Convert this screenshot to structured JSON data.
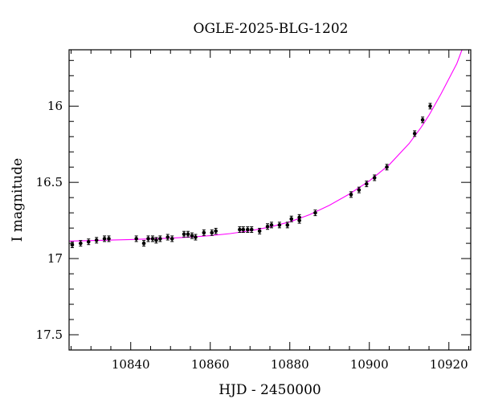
{
  "chart_data": {
    "type": "scatter",
    "title": "OGLE-2025-BLG-1202",
    "xlabel": "HJD - 2450000",
    "ylabel": "I magnitude",
    "xlim": [
      10824.5,
      10925.5
    ],
    "ylim": [
      17.6,
      15.63
    ],
    "y_inverted": true,
    "grid": false,
    "legend": "none",
    "x_ticks": [
      10840,
      10860,
      10880,
      10900,
      10920
    ],
    "x_tick_labels": [
      "10840",
      "10860",
      "10880",
      "10900",
      "10920"
    ],
    "y_ticks": [
      16,
      16.5,
      17,
      17.5
    ],
    "y_tick_labels": [
      "16",
      "16.5",
      "17",
      "17.5"
    ],
    "x_minor_step": 5,
    "y_minor_step": 0.1,
    "colors": {
      "points": "#000000",
      "model": "#ff00ff",
      "axes": "#000000"
    },
    "series": [
      {
        "values": [
          {
            "x": 10825.3,
            "y": 16.91
          },
          {
            "x": 10827.4,
            "y": 16.9
          },
          {
            "x": 10829.4,
            "y": 16.89
          },
          {
            "x": 10831.4,
            "y": 16.88
          },
          {
            "x": 10833.4,
            "y": 16.87
          },
          {
            "x": 10834.5,
            "y": 16.87
          },
          {
            "x": 10841.4,
            "y": 16.87
          },
          {
            "x": 10843.3,
            "y": 16.9
          },
          {
            "x": 10844.4,
            "y": 16.87
          },
          {
            "x": 10845.5,
            "y": 16.87
          },
          {
            "x": 10846.4,
            "y": 16.88
          },
          {
            "x": 10847.4,
            "y": 16.87
          },
          {
            "x": 10849.3,
            "y": 16.86
          },
          {
            "x": 10850.4,
            "y": 16.87
          },
          {
            "x": 10853.4,
            "y": 16.84
          },
          {
            "x": 10854.4,
            "y": 16.84
          },
          {
            "x": 10855.4,
            "y": 16.85
          },
          {
            "x": 10856.3,
            "y": 16.86
          },
          {
            "x": 10858.4,
            "y": 16.83
          },
          {
            "x": 10860.4,
            "y": 16.83
          },
          {
            "x": 10861.4,
            "y": 16.82
          },
          {
            "x": 10867.4,
            "y": 16.81
          },
          {
            "x": 10868.3,
            "y": 16.81
          },
          {
            "x": 10869.4,
            "y": 16.81
          },
          {
            "x": 10870.4,
            "y": 16.81
          },
          {
            "x": 10872.4,
            "y": 16.82
          },
          {
            "x": 10874.4,
            "y": 16.79
          },
          {
            "x": 10875.4,
            "y": 16.78
          },
          {
            "x": 10877.4,
            "y": 16.78
          },
          {
            "x": 10879.4,
            "y": 16.78
          },
          {
            "x": 10880.4,
            "y": 16.74
          },
          {
            "x": 10882.4,
            "y": 16.73
          },
          {
            "x": 10882.4,
            "y": 16.75
          },
          {
            "x": 10886.4,
            "y": 16.7
          },
          {
            "x": 10895.4,
            "y": 16.58
          },
          {
            "x": 10897.4,
            "y": 16.55
          },
          {
            "x": 10899.3,
            "y": 16.51
          },
          {
            "x": 10901.3,
            "y": 16.47
          },
          {
            "x": 10904.4,
            "y": 16.4
          },
          {
            "x": 10911.4,
            "y": 16.18
          },
          {
            "x": 10913.4,
            "y": 16.09
          },
          {
            "x": 10915.3,
            "y": 16.0
          }
        ]
      }
    ],
    "model": {
      "x": [
        10824.5,
        10830,
        10835,
        10840,
        10845,
        10850,
        10855,
        10860,
        10865,
        10870,
        10875,
        10880,
        10885,
        10890,
        10895,
        10900,
        10905,
        10910,
        10913,
        10915,
        10918,
        10920,
        10922,
        10923.3
      ],
      "y": [
        16.885,
        16.882,
        16.879,
        16.875,
        16.871,
        16.866,
        16.859,
        16.85,
        16.836,
        16.818,
        16.793,
        16.759,
        16.712,
        16.65,
        16.576,
        16.49,
        16.385,
        16.245,
        16.14,
        16.06,
        15.92,
        15.82,
        15.72,
        15.63
      ]
    }
  }
}
